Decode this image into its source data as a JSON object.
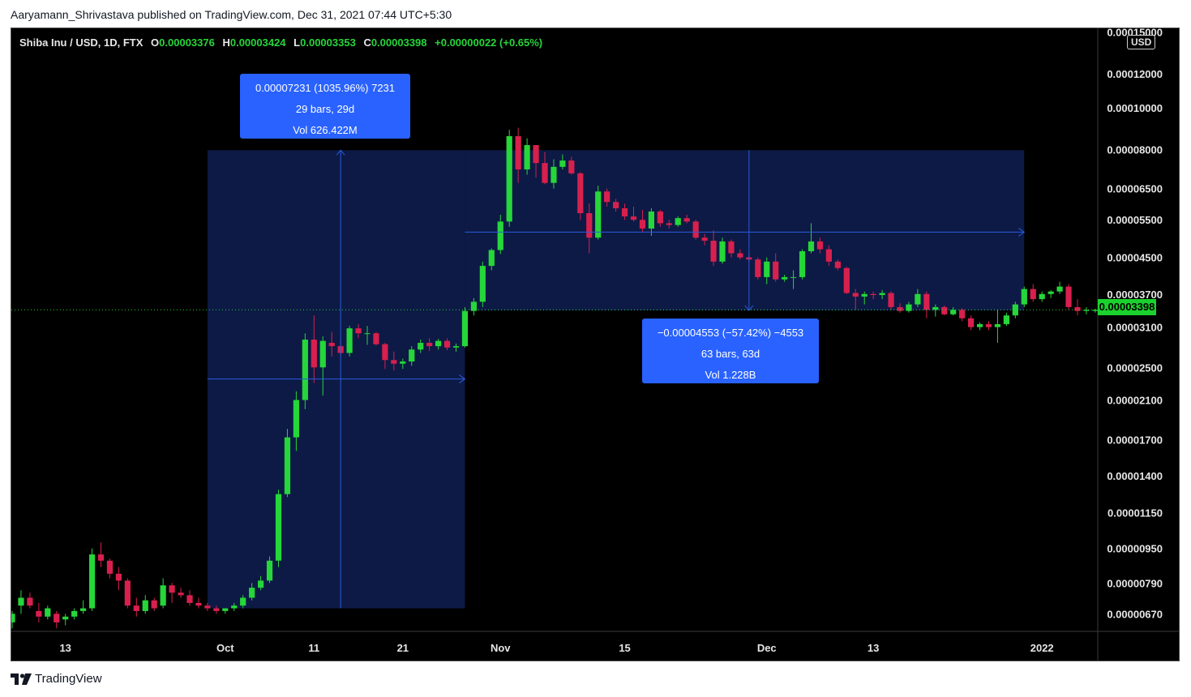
{
  "header": {
    "published_text": "Aaryamann_Shrivastava published on TradingView.com, Dec 31, 2021 07:44 UTC+5:30"
  },
  "legend": {
    "symbol": "Shiba Inu / USD, 1D, FTX",
    "open_label": "O",
    "open": "0.00003376",
    "high_label": "H",
    "high": "0.00003424",
    "low_label": "L",
    "low": "0.00003353",
    "close_label": "C",
    "close": "0.00003398",
    "change": "+0.00000022 (+0.65%)"
  },
  "axis": {
    "currency_badge": "USD",
    "current_price_badge": "0.00003398"
  },
  "measurements": {
    "up": {
      "line1": "0.00007231 (1035.96%) 7231",
      "line2": "29 bars, 29d",
      "line3": "Vol 626.422M"
    },
    "down": {
      "line1": "−0.00004553 (−57.42%) −4553",
      "line2": "63 bars, 63d",
      "line3": "Vol 1.228B"
    }
  },
  "footer": {
    "brand": "TradingView"
  },
  "colors": {
    "up": "#26d63a",
    "down": "#d8204e",
    "range_fill": "#0d1a45",
    "range_line": "#2a5bdc",
    "label_box": "#2962ff"
  },
  "chart_data": {
    "type": "candlestick",
    "scale": "log",
    "ylim": [
      6.1e-06,
      0.000153
    ],
    "y_ticks": [
      "0.00015000",
      "0.00012000",
      "0.00010000",
      "0.00008000",
      "0.00006500",
      "0.00005500",
      "0.00004500",
      "0.00003700",
      "0.00003100",
      "0.00002500",
      "0.00002100",
      "0.00001700",
      "0.00001400",
      "0.00001150",
      "0.00000950",
      "0.00000790",
      "0.00000670"
    ],
    "x_ticks": [
      "13",
      "Oct",
      "11",
      "21",
      "Nov",
      "15",
      "Dec",
      "13",
      "2022"
    ],
    "first_date": "2021-09-07",
    "last_date": "2021-12-31",
    "candles": [
      [
        6.4e-06,
        6.8e-06,
        6.2e-06,
        6.7e-06
      ],
      [
        7e-06,
        7.6e-06,
        6.7e-06,
        7.3e-06
      ],
      [
        7.3e-06,
        7.5e-06,
        6.9e-06,
        7e-06
      ],
      [
        6.8e-06,
        7.1e-06,
        6.4e-06,
        6.6e-06
      ],
      [
        6.6e-06,
        7e-06,
        6.5e-06,
        6.9e-06
      ],
      [
        6.7e-06,
        6.8e-06,
        6.2e-06,
        6.4e-06
      ],
      [
        6.5e-06,
        6.7e-06,
        6.3e-06,
        6.6e-06
      ],
      [
        6.6e-06,
        6.9e-06,
        6.5e-06,
        6.8e-06
      ],
      [
        6.8e-06,
        7.2e-06,
        6.7e-06,
        6.9e-06
      ],
      [
        6.9e-06,
        9.5e-06,
        6.8e-06,
        9.2e-06
      ],
      [
        9.2e-06,
        9.8e-06,
        8.6e-06,
        8.9e-06
      ],
      [
        8.9e-06,
        9e-06,
        8.1e-06,
        8.3e-06
      ],
      [
        8.3e-06,
        8.6e-06,
        7.6e-06,
        8e-06
      ],
      [
        8e-06,
        8.1e-06,
        6.9e-06,
        7e-06
      ],
      [
        7e-06,
        7.3e-06,
        6.6e-06,
        6.8e-06
      ],
      [
        6.8e-06,
        7.4e-06,
        6.7e-06,
        7.2e-06
      ],
      [
        7.2e-06,
        7.3e-06,
        6.8e-06,
        6.9e-06
      ],
      [
        7e-06,
        8.1e-06,
        6.9e-06,
        7.8e-06
      ],
      [
        7.8e-06,
        7.9e-06,
        7.1e-06,
        7.5e-06
      ],
      [
        7.5e-06,
        7.7e-06,
        7.3e-06,
        7.4e-06
      ],
      [
        7.4e-06,
        7.6e-06,
        7e-06,
        7.1e-06
      ],
      [
        7.1e-06,
        7.3e-06,
        6.9e-06,
        7e-06
      ],
      [
        7e-06,
        7.1e-06,
        6.8e-06,
        6.9e-06
      ],
      [
        6.9e-06,
        7e-06,
        6.7e-06,
        6.8e-06
      ],
      [
        6.8e-06,
        6.9e-06,
        6.7e-06,
        6.9e-06
      ],
      [
        6.9e-06,
        7.1e-06,
        6.8e-06,
        7e-06
      ],
      [
        7e-06,
        7.4e-06,
        6.9e-06,
        7.3e-06
      ],
      [
        7.3e-06,
        7.9e-06,
        7.2e-06,
        7.7e-06
      ],
      [
        7.7e-06,
        8.2e-06,
        7.6e-06,
        8e-06
      ],
      [
        8e-06,
        9.1e-06,
        7.9e-06,
        8.9e-06
      ],
      [
        8.9e-06,
        1.3e-05,
        8.6e-06,
        1.27e-05
      ],
      [
        1.27e-05,
        1.8e-05,
        1.25e-05,
        1.72e-05
      ],
      [
        1.72e-05,
        2.2e-05,
        1.6e-05,
        2.1e-05
      ],
      [
        2.1e-05,
        3e-05,
        2e-05,
        2.9e-05
      ],
      [
        2.9e-05,
        3.3e-05,
        2.3e-05,
        2.5e-05
      ],
      [
        2.5e-05,
        2.95e-05,
        2.15e-05,
        2.88e-05
      ],
      [
        2.85e-05,
        3.02e-05,
        2.65e-05,
        2.8e-05
      ],
      [
        2.8e-05,
        2.88e-05,
        2.66e-05,
        2.7e-05
      ],
      [
        2.7e-05,
        3.12e-05,
        2.65e-05,
        3.08e-05
      ],
      [
        3.08e-05,
        3.15e-05,
        2.92e-05,
        3e-05
      ],
      [
        3e-05,
        3.12e-05,
        2.82e-05,
        3e-05
      ],
      [
        3e-05,
        3.02e-05,
        2.81e-05,
        2.83e-05
      ],
      [
        2.83e-05,
        2.85e-05,
        2.48e-05,
        2.6e-05
      ],
      [
        2.6e-05,
        2.72e-05,
        2.46e-05,
        2.55e-05
      ],
      [
        2.55e-05,
        2.62e-05,
        2.48e-05,
        2.58e-05
      ],
      [
        2.58e-05,
        2.8e-05,
        2.52e-05,
        2.75e-05
      ],
      [
        2.75e-05,
        2.9e-05,
        2.7e-05,
        2.85e-05
      ],
      [
        2.85e-05,
        2.92e-05,
        2.73e-05,
        2.8e-05
      ],
      [
        2.8e-05,
        2.91e-05,
        2.75e-05,
        2.88e-05
      ],
      [
        2.88e-05,
        2.92e-05,
        2.74e-05,
        2.78e-05
      ],
      [
        2.78e-05,
        2.84e-05,
        2.72e-05,
        2.8e-05
      ],
      [
        2.8e-05,
        3.45e-05,
        2.78e-05,
        3.38e-05
      ],
      [
        3.38e-05,
        3.62e-05,
        3.3e-05,
        3.55e-05
      ],
      [
        3.55e-05,
        4.4e-05,
        3.45e-05,
        4.3e-05
      ],
      [
        4.3e-05,
        4.72e-05,
        4.2e-05,
        4.68e-05
      ],
      [
        4.68e-05,
        5.65e-05,
        4.58e-05,
        5.45e-05
      ],
      [
        5.45e-05,
        8.9e-05,
        5.3e-05,
        8.6e-05
      ],
      [
        8.6e-05,
        9e-05,
        6.7e-05,
        7.2e-05
      ],
      [
        7.2e-05,
        8.5e-05,
        7e-05,
        8.2e-05
      ],
      [
        8.2e-05,
        8.2e-05,
        6.9e-05,
        7.45e-05
      ],
      [
        7.45e-05,
        7.9e-05,
        6.65e-05,
        6.7e-05
      ],
      [
        6.7e-05,
        7.6e-05,
        6.5e-05,
        7.3e-05
      ],
      [
        7.3e-05,
        7.8e-05,
        7.2e-05,
        7.55e-05
      ],
      [
        7.55e-05,
        7.7e-05,
        7e-05,
        7.05e-05
      ],
      [
        7.05e-05,
        7.1e-05,
        5.5e-05,
        5.7e-05
      ],
      [
        5.7e-05,
        6e-05,
        4.6e-05,
        5e-05
      ],
      [
        5e-05,
        6.6e-05,
        4.95e-05,
        6.4e-05
      ],
      [
        6.4e-05,
        6.5e-05,
        5.9e-05,
        6.05e-05
      ],
      [
        6.05e-05,
        6.15e-05,
        5.75e-05,
        5.85e-05
      ],
      [
        5.85e-05,
        6e-05,
        5.5e-05,
        5.6e-05
      ],
      [
        5.6e-05,
        5.9e-05,
        5.45e-05,
        5.5e-05
      ],
      [
        5.5e-05,
        5.8e-05,
        5.15e-05,
        5.25e-05
      ],
      [
        5.25e-05,
        5.85e-05,
        5.05e-05,
        5.75e-05
      ],
      [
        5.75e-05,
        5.8e-05,
        5.3e-05,
        5.4e-05
      ],
      [
        5.4e-05,
        5.5e-05,
        5.25e-05,
        5.35e-05
      ],
      [
        5.35e-05,
        5.6e-05,
        5.3e-05,
        5.55e-05
      ],
      [
        5.55e-05,
        5.65e-05,
        5.4e-05,
        5.45e-05
      ],
      [
        5.45e-05,
        5.5e-05,
        4.95e-05,
        5e-05
      ],
      [
        5e-05,
        5.1e-05,
        4.8e-05,
        4.92e-05
      ],
      [
        4.92e-05,
        5.2e-05,
        4.3e-05,
        4.4e-05
      ],
      [
        4.4e-05,
        5e-05,
        4.35e-05,
        4.9e-05
      ],
      [
        4.9e-05,
        4.95e-05,
        4.5e-05,
        4.6e-05
      ],
      [
        4.6e-05,
        4.7e-05,
        4.45e-05,
        4.5e-05
      ],
      [
        4.5e-05,
        4.6e-05,
        4.4e-05,
        4.45e-05
      ],
      [
        4.45e-05,
        4.5e-05,
        4e-05,
        4.05e-05
      ],
      [
        4.05e-05,
        4.5e-05,
        3.9e-05,
        4.4e-05
      ],
      [
        4.4e-05,
        4.6e-05,
        3.95e-05,
        4e-05
      ],
      [
        4e-05,
        4.1e-05,
        3.95e-05,
        4.05e-05
      ],
      [
        4.05e-05,
        4.2e-05,
        3.8e-05,
        4.05e-05
      ],
      [
        4.05e-05,
        4.7e-05,
        4e-05,
        4.65e-05
      ],
      [
        4.65e-05,
        5.4e-05,
        4.6e-05,
        4.9e-05
      ],
      [
        4.9e-05,
        5e-05,
        4.6e-05,
        4.7e-05
      ],
      [
        4.7e-05,
        4.8e-05,
        4.3e-05,
        4.4e-05
      ],
      [
        4.4e-05,
        4.45e-05,
        4.2e-05,
        4.25e-05
      ],
      [
        4.25e-05,
        4.28e-05,
        3.7e-05,
        3.72e-05
      ],
      [
        3.72e-05,
        3.8e-05,
        3.4e-05,
        3.65e-05
      ],
      [
        3.65e-05,
        3.75e-05,
        3.5e-05,
        3.7e-05
      ],
      [
        3.7e-05,
        3.75e-05,
        3.6e-05,
        3.68e-05
      ],
      [
        3.68e-05,
        3.78e-05,
        3.6e-05,
        3.72e-05
      ],
      [
        3.72e-05,
        3.75e-05,
        3.4e-05,
        3.45e-05
      ],
      [
        3.45e-05,
        3.52e-05,
        3.35e-05,
        3.38e-05
      ],
      [
        3.38e-05,
        3.55e-05,
        3.35e-05,
        3.5e-05
      ],
      [
        3.5e-05,
        3.8e-05,
        3.45e-05,
        3.7e-05
      ],
      [
        3.7e-05,
        3.75e-05,
        3.25e-05,
        3.4e-05
      ],
      [
        3.4e-05,
        3.5e-05,
        3.28e-05,
        3.45e-05
      ],
      [
        3.45e-05,
        3.48e-05,
        3.3e-05,
        3.32e-05
      ],
      [
        3.32e-05,
        3.45e-05,
        3.3e-05,
        3.4e-05
      ],
      [
        3.4e-05,
        3.43e-05,
        3.2e-05,
        3.25e-05
      ],
      [
        3.25e-05,
        3.3e-05,
        3.05e-05,
        3.1e-05
      ],
      [
        3.1e-05,
        3.18e-05,
        3.05e-05,
        3.15e-05
      ],
      [
        3.15e-05,
        3.2e-05,
        3.05e-05,
        3.1e-05
      ],
      [
        3.1e-05,
        3.4e-05,
        2.85e-05,
        3.15e-05
      ],
      [
        3.15e-05,
        3.35e-05,
        3.12e-05,
        3.3e-05
      ],
      [
        3.3e-05,
        3.55e-05,
        3.25e-05,
        3.5e-05
      ],
      [
        3.5e-05,
        3.85e-05,
        3.45e-05,
        3.8e-05
      ],
      [
        3.8e-05,
        3.9e-05,
        3.55e-05,
        3.6e-05
      ],
      [
        3.6e-05,
        3.75e-05,
        3.55e-05,
        3.7e-05
      ],
      [
        3.7e-05,
        3.78e-05,
        3.62e-05,
        3.75e-05
      ],
      [
        3.75e-05,
        3.95e-05,
        3.7e-05,
        3.85e-05
      ],
      [
        3.85e-05,
        3.9e-05,
        3.4e-05,
        3.45e-05
      ],
      [
        3.45e-05,
        3.6e-05,
        3.3e-05,
        3.38e-05
      ],
      [
        3.38e-05,
        3.45e-05,
        3.32e-05,
        3.4e-05
      ],
      [
        3.38e-05,
        3.42e-05,
        3.35e-05,
        3.4e-05
      ]
    ]
  }
}
